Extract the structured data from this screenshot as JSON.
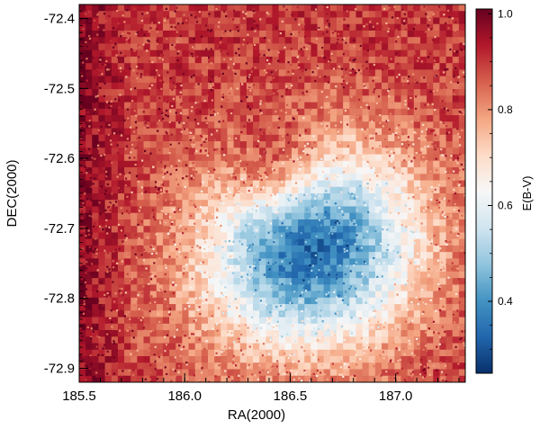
{
  "chart_data": {
    "type": "heatmap",
    "title": "",
    "xlabel": "RA(2000)",
    "ylabel": "DEC(2000)",
    "xlim": [
      185.5,
      187.33
    ],
    "ylim": [
      -72.92,
      -72.38
    ],
    "x_ticks": [
      185.5,
      186.0,
      186.5,
      187.0
    ],
    "x_tick_labels": [
      "185.5",
      "186.0",
      "186.5",
      "187.0"
    ],
    "y_ticks": [
      -72.4,
      -72.5,
      -72.6,
      -72.7,
      -72.8,
      -72.9
    ],
    "y_tick_labels": [
      "-72.4",
      "-72.5",
      "-72.6",
      "-72.7",
      "-72.8",
      "-72.9"
    ],
    "grid": false,
    "colorbar": {
      "label": "E(B-V)",
      "range": [
        0.25,
        1.01
      ],
      "ticks": [
        0.4,
        0.6,
        0.8,
        1.0
      ],
      "tick_labels": [
        "0.4",
        "0.6",
        "0.8",
        "1.0"
      ],
      "colormap": "RdBu_r",
      "colors": [
        "#08306b",
        "#2166ac",
        "#4393c3",
        "#92c5de",
        "#d1e5f0",
        "#f7f7f7",
        "#fddbc7",
        "#f4a582",
        "#d6604d",
        "#b2182b",
        "#67001f"
      ]
    },
    "field_model": {
      "description_of_values": "E(B-V) reddening map; low values (~0.35) in an elongated blue region centred near RA 186.6, DEC -72.73 with a lighter core near RA 186.45, DEC -72.62; high values (~0.8-0.9) toward the left edge and corners",
      "center_ra": 186.6,
      "center_dec": -72.73,
      "core_ra": 186.45,
      "core_dec": -72.62,
      "min_value": 0.33,
      "max_value": 0.9,
      "edge_value_left": 0.88
    }
  }
}
